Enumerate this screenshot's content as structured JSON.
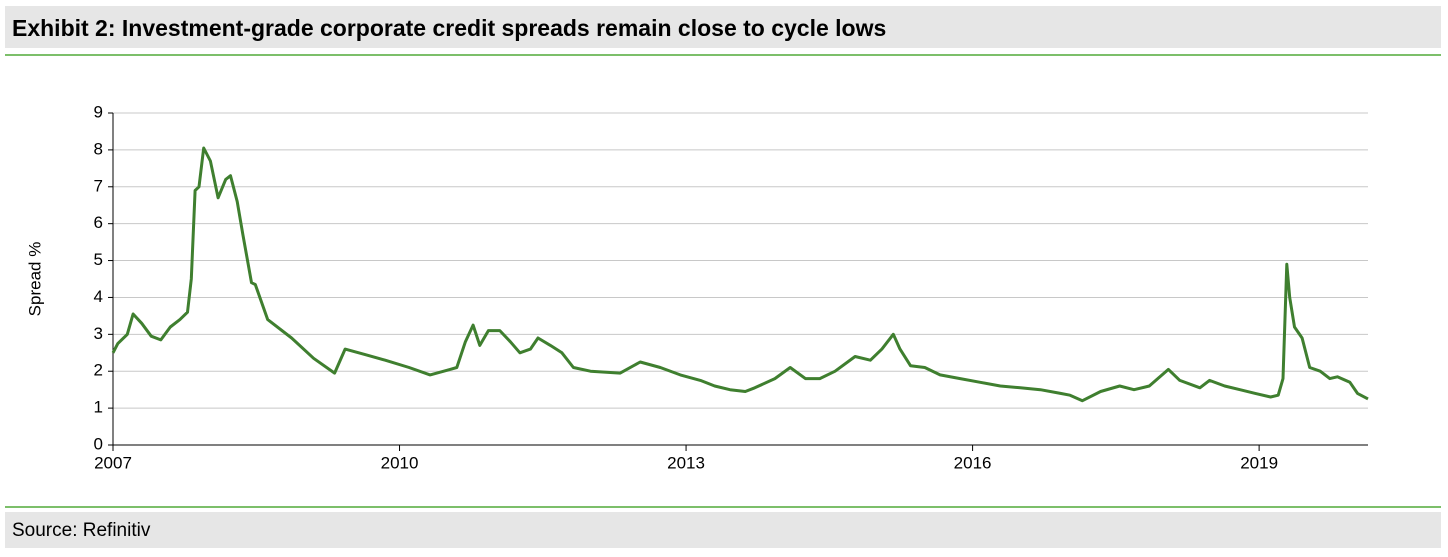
{
  "chart_data": {
    "type": "line",
    "title": "Exhibit 2: Investment-grade corporate credit spreads remain close to cycle lows",
    "ylabel": "Spread %",
    "source": "Source: Refinitiv",
    "color": "#3f7f2f",
    "grid": true,
    "xlim": [
      2007,
      2020.14
    ],
    "xticks": [
      2007,
      2010,
      2013,
      2016,
      2019
    ],
    "ylim": [
      0,
      9
    ],
    "yticks": [
      0,
      1,
      2,
      3,
      4,
      5,
      6,
      7,
      8,
      9
    ],
    "x": [
      2007.0,
      2007.05,
      2007.15,
      2007.21,
      2007.3,
      2007.4,
      2007.5,
      2007.6,
      2007.7,
      2007.78,
      2007.82,
      2007.86,
      2007.9,
      2007.95,
      2008.02,
      2008.1,
      2008.18,
      2008.23,
      2008.3,
      2008.36,
      2008.45,
      2008.49,
      2008.62,
      2008.87,
      2009.1,
      2009.32,
      2009.43,
      2009.64,
      2009.85,
      2010.1,
      2010.32,
      2010.53,
      2010.6,
      2010.69,
      2010.77,
      2010.84,
      2010.93,
      2011.05,
      2011.16,
      2011.26,
      2011.37,
      2011.45,
      2011.58,
      2011.7,
      2011.82,
      2012.0,
      2012.31,
      2012.52,
      2012.73,
      2012.94,
      2013.15,
      2013.3,
      2013.46,
      2013.62,
      2013.72,
      2013.93,
      2014.09,
      2014.25,
      2014.4,
      2014.56,
      2014.77,
      2014.93,
      2015.05,
      2015.17,
      2015.24,
      2015.35,
      2015.5,
      2015.66,
      2015.87,
      2016.08,
      2016.29,
      2016.5,
      2016.71,
      2016.92,
      2017.02,
      2017.15,
      2017.34,
      2017.54,
      2017.69,
      2017.85,
      2018.05,
      2018.17,
      2018.38,
      2018.48,
      2018.64,
      2018.8,
      2018.96,
      2019.12,
      2019.2,
      2019.25,
      2019.29,
      2019.32,
      2019.37,
      2019.45,
      2019.53,
      2019.64,
      2019.74,
      2019.82,
      2019.95,
      2020.03,
      2020.14
    ],
    "values": [
      2.5,
      2.75,
      3.0,
      3.55,
      3.3,
      2.95,
      2.85,
      3.2,
      3.4,
      3.6,
      4.5,
      6.9,
      7.0,
      8.05,
      7.7,
      6.7,
      7.2,
      7.3,
      6.6,
      5.7,
      4.4,
      4.35,
      3.4,
      2.9,
      2.35,
      1.95,
      2.6,
      2.45,
      2.3,
      2.1,
      1.9,
      2.05,
      2.1,
      2.8,
      3.25,
      2.7,
      3.1,
      3.1,
      2.8,
      2.5,
      2.6,
      2.9,
      2.7,
      2.5,
      2.1,
      2.0,
      1.95,
      2.25,
      2.1,
      1.9,
      1.75,
      1.6,
      1.5,
      1.45,
      1.55,
      1.8,
      2.1,
      1.8,
      1.8,
      2.0,
      2.4,
      2.3,
      2.6,
      3.0,
      2.6,
      2.15,
      2.1,
      1.9,
      1.8,
      1.7,
      1.6,
      1.55,
      1.5,
      1.4,
      1.35,
      1.2,
      1.45,
      1.6,
      1.5,
      1.6,
      2.05,
      1.75,
      1.55,
      1.75,
      1.6,
      1.5,
      1.4,
      1.3,
      1.35,
      1.8,
      4.9,
      4.0,
      3.2,
      2.9,
      2.1,
      2.0,
      1.8,
      1.85,
      1.7,
      1.4,
      1.25
    ]
  }
}
